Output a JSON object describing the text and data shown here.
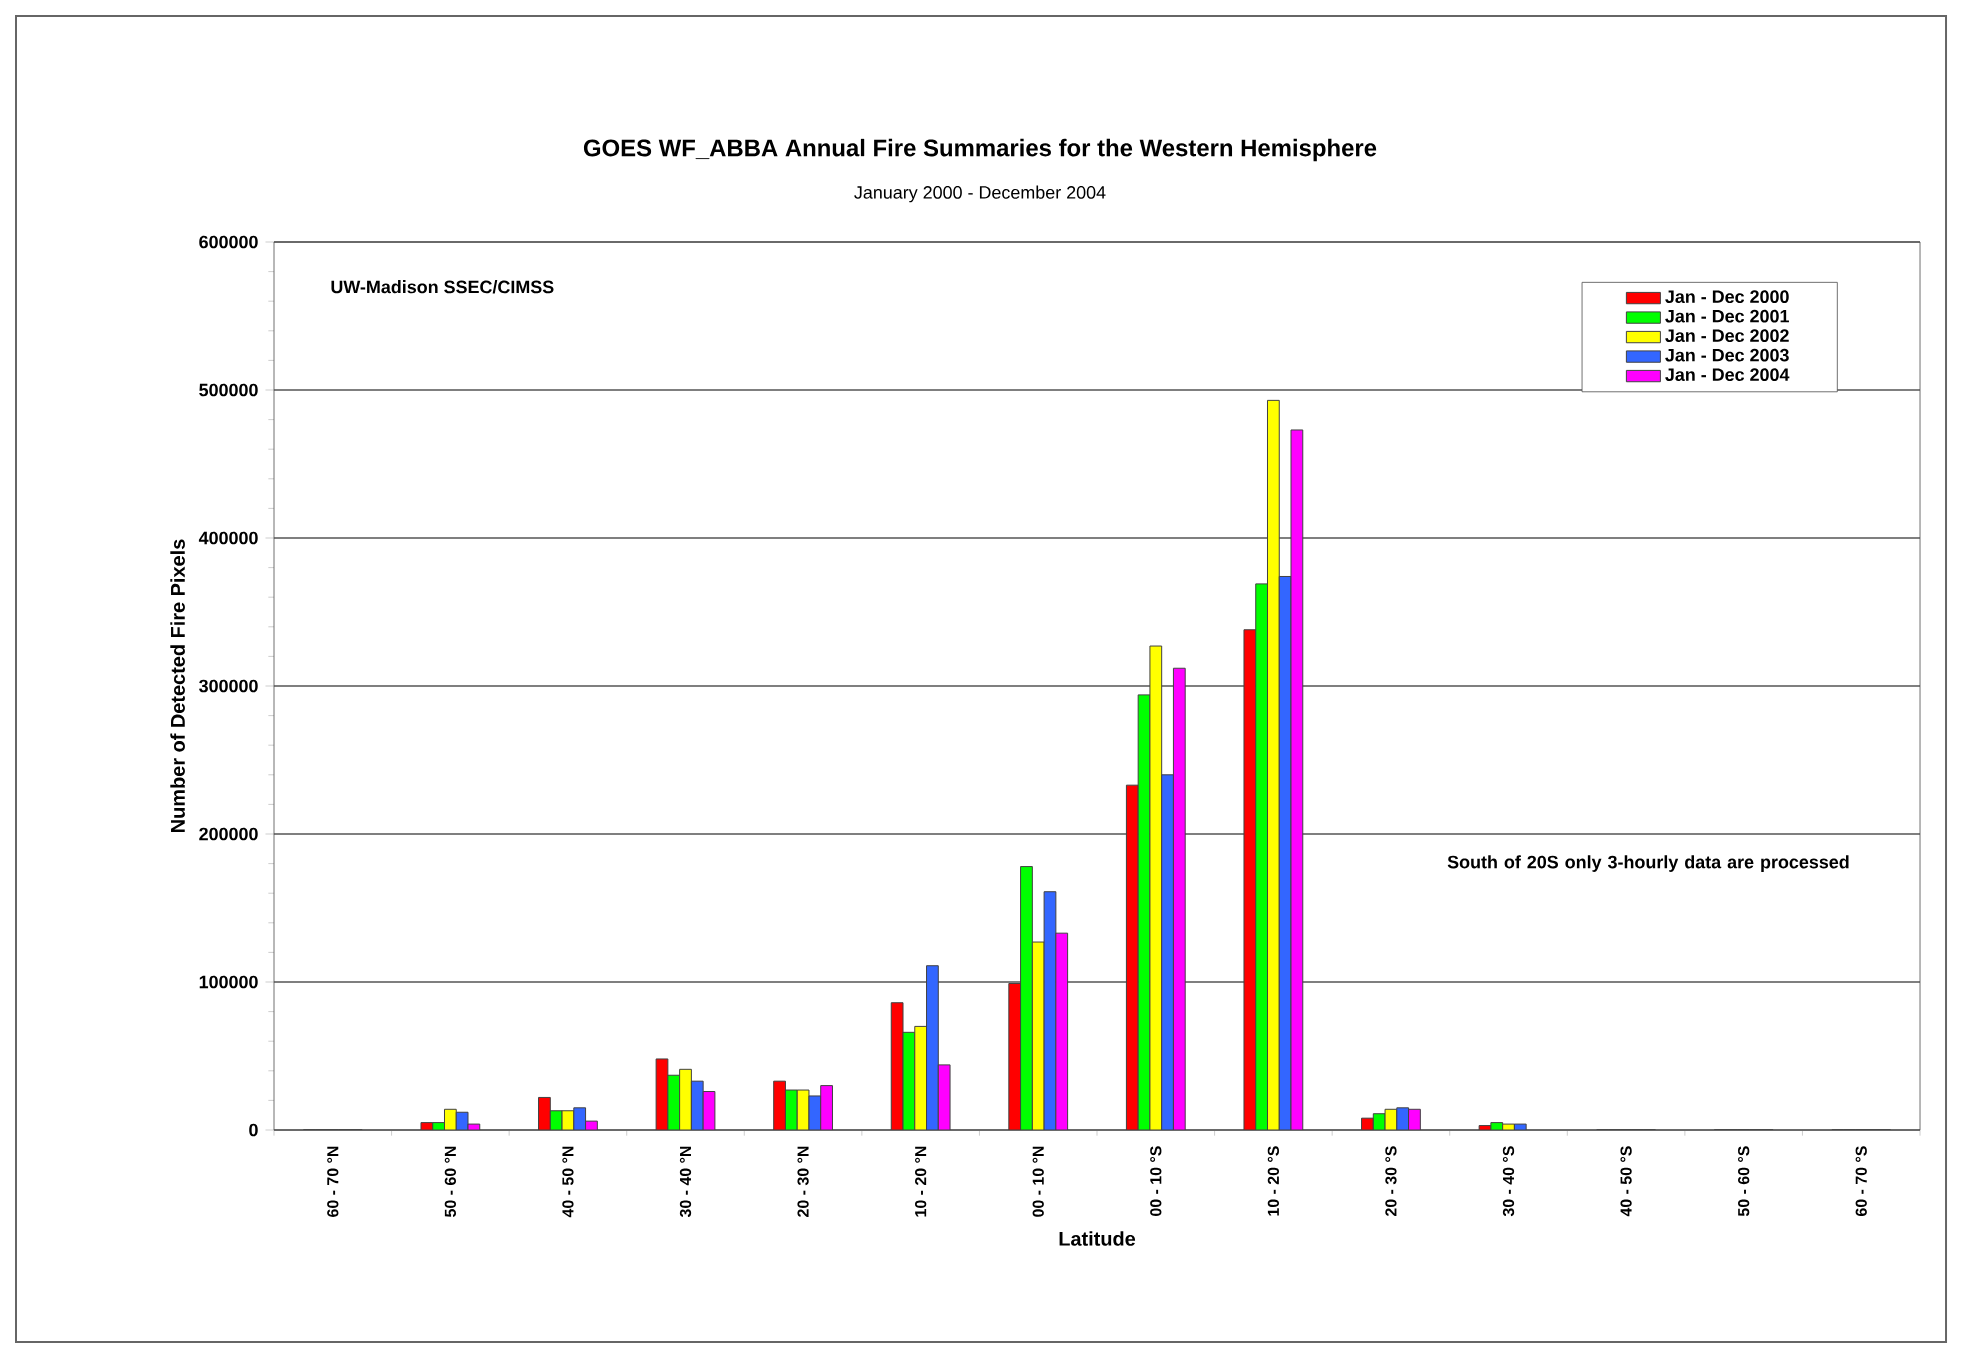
{
  "chart_data": {
    "type": "bar",
    "title": "GOES WF_ABBA Annual Fire Summaries for the Western Hemisphere",
    "subtitle": "January 2000 - December 2004",
    "xlabel": "Latitude",
    "ylabel": "Number of Detected Fire Pixels",
    "categories": [
      "60 - 70 °N",
      "50 - 60 °N",
      "40 - 50 °N",
      "30 - 40 °N",
      "20 - 30 °N",
      "10 - 20 °N",
      "00 - 10 °N",
      "00 - 10 °S",
      "10 - 20 °S",
      "20 - 30 °S",
      "30 - 40 °S",
      "40 - 50 °S",
      "50 - 60 °S",
      "60 - 70 °S"
    ],
    "series": [
      {
        "name": "Jan - Dec 2000",
        "color": "#ff0000",
        "values": [
          0,
          5000,
          22000,
          48000,
          33000,
          86000,
          99000,
          233000,
          338000,
          8000,
          3000,
          0,
          0,
          0
        ]
      },
      {
        "name": "Jan - Dec 2001",
        "color": "#00ff00",
        "values": [
          0,
          5000,
          13000,
          37000,
          27000,
          66000,
          178000,
          294000,
          369000,
          11000,
          5000,
          0,
          0,
          0
        ]
      },
      {
        "name": "Jan - Dec 2002",
        "color": "#ffff00",
        "values": [
          0,
          14000,
          13000,
          41000,
          27000,
          70000,
          127000,
          327000,
          493000,
          14000,
          4000,
          0,
          0,
          0
        ]
      },
      {
        "name": "Jan - Dec 2003",
        "color": "#3366ff",
        "values": [
          0,
          12000,
          15000,
          33000,
          23000,
          111000,
          161000,
          240000,
          374000,
          15000,
          4000,
          0,
          0,
          0
        ]
      },
      {
        "name": "Jan - Dec 2004",
        "color": "#ff00ff",
        "values": [
          0,
          4000,
          6000,
          26000,
          30000,
          44000,
          133000,
          312000,
          473000,
          14000,
          null,
          0,
          0,
          0
        ]
      }
    ],
    "ylim": [
      0,
      600000
    ],
    "yticks": [
      0,
      100000,
      200000,
      300000,
      400000,
      500000,
      600000
    ],
    "grid": "y",
    "legend": "top right",
    "annotations": [
      "UW-Madison SSEC/CIMSS",
      "South of 20S only 3-hourly data are processed"
    ]
  }
}
